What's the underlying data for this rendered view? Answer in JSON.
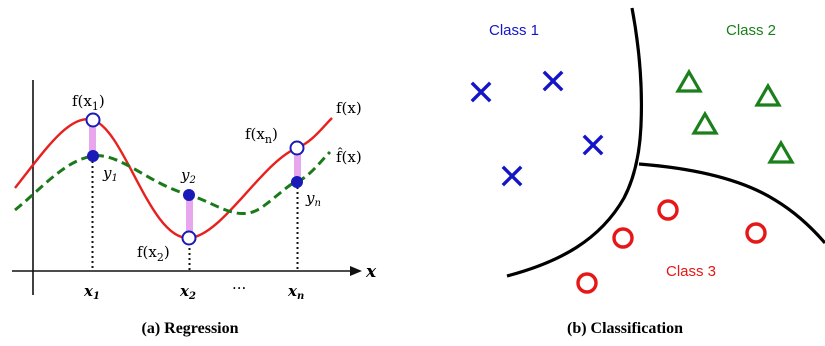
{
  "regression": {
    "caption": "(a) Regression",
    "axis_x_label": "x",
    "true_fn_label": "f(x)",
    "est_fn_label": "f̂(x)",
    "points": [
      {
        "fx_label": "f(x",
        "fx_sub": "1",
        "y_label": "y",
        "y_sub": "1",
        "x_label": "x",
        "x_sub": "1"
      },
      {
        "fx_label": "f(x",
        "fx_sub": "2",
        "y_label": "y",
        "y_sub": "2",
        "x_label": "x",
        "x_sub": "2"
      },
      {
        "fx_label": "f(x",
        "fx_sub": "n",
        "y_label": "y",
        "y_sub": "n",
        "x_label": "x",
        "x_sub": "n"
      }
    ],
    "ellipsis": "···",
    "colors": {
      "true_fn": "#e8201e",
      "est_fn": "#1a7a1a",
      "points": "#1a1ab8",
      "residual": "#e7a6ee",
      "axis": "#111111"
    }
  },
  "classification": {
    "caption": "(b) Classification",
    "classes": [
      {
        "label": "Class 1",
        "color": "#1414c8",
        "marker": "cross"
      },
      {
        "label": "Class 2",
        "color": "#1b7f1b",
        "marker": "triangle"
      },
      {
        "label": "Class 3",
        "color": "#e51717",
        "marker": "circle"
      }
    ]
  }
}
